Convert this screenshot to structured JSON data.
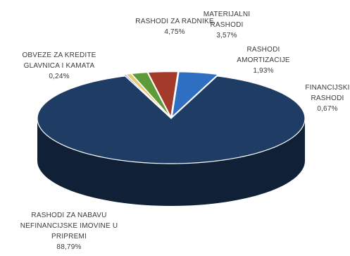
{
  "chart_data": {
    "type": "pie",
    "style": "3d",
    "title": "",
    "legend": "none",
    "slices": [
      {
        "name": "RASHODI ZA NABAVU NEFINANCIJSKE IMOVINE U PRIPREMI",
        "name_lines": [
          "RASHODI ZA NABAVU",
          "NEFINANCIJSKE IMOVINE U",
          "PRIPREMI"
        ],
        "value": 88.79,
        "value_label": "88,79%",
        "color": "#1f3c64",
        "side_color": "#0f2037"
      },
      {
        "name": "RASHODI ZA RADNIKE",
        "name_lines": [
          "RASHODI ZA RADNIKE"
        ],
        "value": 4.75,
        "value_label": "4,75%",
        "color": "#2f6fc2",
        "side_color": "#1b4a86"
      },
      {
        "name": "MATERIJALNI RASHODI",
        "name_lines": [
          "MATERIJALNI",
          "RASHODI"
        ],
        "value": 3.57,
        "value_label": "3,57%",
        "color": "#a33a2a",
        "side_color": "#6e231a"
      },
      {
        "name": "RASHODI AMORTIZACIJE",
        "name_lines": [
          "RASHODI",
          "AMORTIZACIJE"
        ],
        "value": 1.93,
        "value_label": "1,93%",
        "color": "#5c9a3a",
        "side_color": "#3c6a24"
      },
      {
        "name": "FINANCIJSKI RASHODI",
        "name_lines": [
          "FINANCIJSKI",
          "RASHODI"
        ],
        "value": 0.67,
        "value_label": "0,67%",
        "color": "#e6c86e",
        "side_color": "#a88e44"
      },
      {
        "name": "OBVEZE ZA KREDITE GLAVNICA I KAMATA",
        "name_lines": [
          "OBVEZE ZA KREDITE",
          "GLAVNICA I KAMATA"
        ],
        "value": 0.24,
        "value_label": "0,24%",
        "color": "#7a93b3",
        "side_color": "#4a5f7c"
      }
    ]
  }
}
